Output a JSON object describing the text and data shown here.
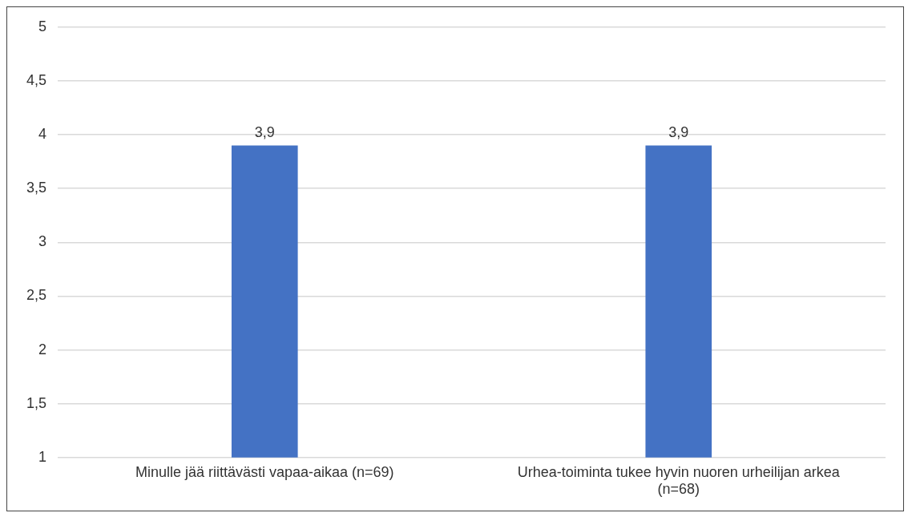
{
  "chart_data": {
    "type": "bar",
    "categories": [
      "Minulle jää riittävästi vapaa-aikaa (n=69)",
      "Urhea-toiminta tukee hyvin nuoren urheilijan arkea (n=68)"
    ],
    "values": [
      3.9,
      3.9
    ],
    "color": "#4472c4",
    "value_labels": [
      "3,9",
      "3,9"
    ],
    "ylim": [
      1,
      5
    ],
    "yticks": [
      1,
      {
        "value": 1.5,
        "label": "1,5"
      },
      2,
      {
        "value": 2.5,
        "label": "2,5"
      },
      3,
      {
        "value": 3.5,
        "label": "3,5"
      },
      4,
      {
        "value": 4.5,
        "label": "4,5"
      },
      5
    ],
    "grid": "y",
    "legend": false
  }
}
